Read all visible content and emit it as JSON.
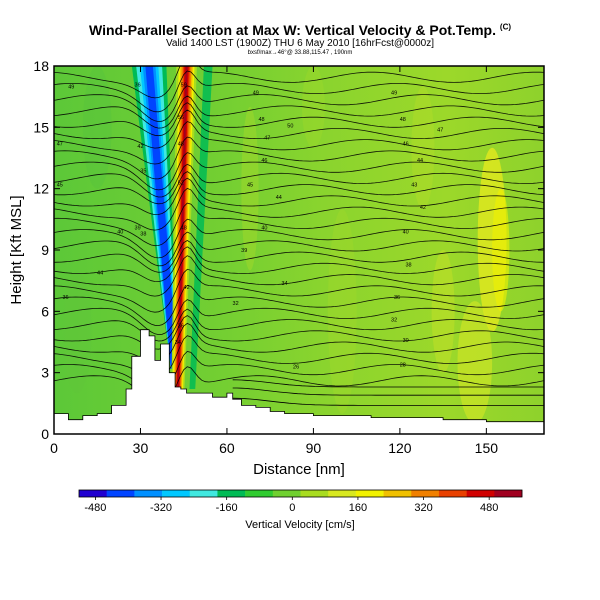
{
  "titles": {
    "main": "Wind-Parallel Section at Max W: Vertical Velocity & Pot.Temp.",
    "copyright": "(C)",
    "valid": "Valid 1400 LST (1900Z) THU 6 May 2010 [16hrFcst@0000z]",
    "location": "bxsf/max→46°@ 33.88,115.47 , 190nm"
  },
  "chart_data": {
    "type": "heatmap",
    "xlabel": "Distance [nm]",
    "ylabel": "Height [Kft MSL]",
    "xlim": [
      0,
      170
    ],
    "ylim": [
      0,
      18
    ],
    "xticks": [
      0,
      30,
      60,
      90,
      120,
      150
    ],
    "yticks": [
      0,
      3,
      6,
      9,
      12,
      15,
      18
    ],
    "terrain": {
      "unit": "Kft MSL",
      "x": [
        0,
        3,
        5,
        8,
        10,
        15,
        20,
        25,
        27,
        30,
        33,
        35,
        37,
        40,
        42,
        44,
        46,
        50,
        55,
        60,
        62,
        65,
        70,
        75,
        80,
        85,
        90,
        100,
        110,
        120,
        125,
        130,
        135,
        140,
        150,
        160,
        170
      ],
      "height": [
        1.0,
        1.0,
        0.7,
        0.7,
        0.9,
        1.0,
        1.4,
        2.2,
        3.8,
        5.1,
        4.8,
        3.6,
        4.4,
        3.0,
        2.3,
        2.2,
        2.0,
        2.0,
        1.8,
        2.0,
        1.7,
        1.4,
        1.3,
        1.1,
        1.0,
        1.0,
        0.9,
        0.9,
        0.8,
        0.8,
        0.8,
        0.8,
        0.7,
        0.7,
        0.6,
        0.6,
        0.6
      ]
    },
    "updraft": {
      "description": "narrow updraft core",
      "x_surface": 43,
      "x_top": 46,
      "max_cm_s": 500
    },
    "downdraft": {
      "description": "negative vertical velocity bands",
      "x_surface": 42,
      "x_top": 33,
      "min_cm_s": -400
    },
    "colorbar": {
      "label": "Vertical Velocity [cm/s]",
      "min": -520,
      "max": 560,
      "ticks": [
        -480,
        -320,
        -160,
        0,
        160,
        320,
        480
      ],
      "colors": [
        "#2000d0",
        "#0044ff",
        "#0090ff",
        "#00c8ff",
        "#40e8e0",
        "#00bb55",
        "#30cc30",
        "#70d030",
        "#a8dc20",
        "#d8e820",
        "#f2f200",
        "#f0c000",
        "#f08000",
        "#e84000",
        "#d00000",
        "#a00020"
      ]
    },
    "potential_temperature_labels": [
      {
        "x": 6,
        "y": 16.9,
        "text": "49"
      },
      {
        "x": 2,
        "y": 14.1,
        "text": "47"
      },
      {
        "x": 2,
        "y": 12.1,
        "text": "45"
      },
      {
        "x": 16,
        "y": 7.8,
        "text": "44"
      },
      {
        "x": 4,
        "y": 6.6,
        "text": "36"
      },
      {
        "x": 29,
        "y": 17.0,
        "text": "36"
      },
      {
        "x": 30,
        "y": 14.0,
        "text": "42"
      },
      {
        "x": 31,
        "y": 12.8,
        "text": "35"
      },
      {
        "x": 29,
        "y": 10.0,
        "text": "39"
      },
      {
        "x": 23,
        "y": 9.8,
        "text": "40"
      },
      {
        "x": 31,
        "y": 9.7,
        "text": "38"
      },
      {
        "x": 45,
        "y": 17.0,
        "text": "59"
      },
      {
        "x": 44,
        "y": 15.4,
        "text": "56"
      },
      {
        "x": 44,
        "y": 14.1,
        "text": "48"
      },
      {
        "x": 44,
        "y": 12.2,
        "text": "52"
      },
      {
        "x": 45,
        "y": 10.0,
        "text": "48"
      },
      {
        "x": 46,
        "y": 7.1,
        "text": "42"
      },
      {
        "x": 44,
        "y": 5.2,
        "text": "36"
      },
      {
        "x": 43,
        "y": 4.4,
        "text": "34"
      },
      {
        "x": 70,
        "y": 16.6,
        "text": "49"
      },
      {
        "x": 72,
        "y": 15.3,
        "text": "48"
      },
      {
        "x": 82,
        "y": 15.0,
        "text": "50"
      },
      {
        "x": 74,
        "y": 14.4,
        "text": "47"
      },
      {
        "x": 73,
        "y": 13.3,
        "text": "46"
      },
      {
        "x": 68,
        "y": 12.1,
        "text": "45"
      },
      {
        "x": 78,
        "y": 11.5,
        "text": "44"
      },
      {
        "x": 73,
        "y": 10.0,
        "text": "40"
      },
      {
        "x": 66,
        "y": 8.9,
        "text": "39"
      },
      {
        "x": 80,
        "y": 7.3,
        "text": "34"
      },
      {
        "x": 63,
        "y": 6.3,
        "text": "32"
      },
      {
        "x": 84,
        "y": 3.2,
        "text": "26"
      },
      {
        "x": 118,
        "y": 16.6,
        "text": "49"
      },
      {
        "x": 121,
        "y": 15.3,
        "text": "48"
      },
      {
        "x": 134,
        "y": 14.8,
        "text": "47"
      },
      {
        "x": 122,
        "y": 14.1,
        "text": "46"
      },
      {
        "x": 127,
        "y": 13.3,
        "text": "44"
      },
      {
        "x": 125,
        "y": 12.1,
        "text": "43"
      },
      {
        "x": 128,
        "y": 11.0,
        "text": "42"
      },
      {
        "x": 122,
        "y": 9.8,
        "text": "40"
      },
      {
        "x": 123,
        "y": 8.2,
        "text": "38"
      },
      {
        "x": 119,
        "y": 6.6,
        "text": "36"
      },
      {
        "x": 118,
        "y": 5.5,
        "text": "32"
      },
      {
        "x": 122,
        "y": 4.5,
        "text": "30"
      },
      {
        "x": 121,
        "y": 3.3,
        "text": "28"
      }
    ]
  }
}
